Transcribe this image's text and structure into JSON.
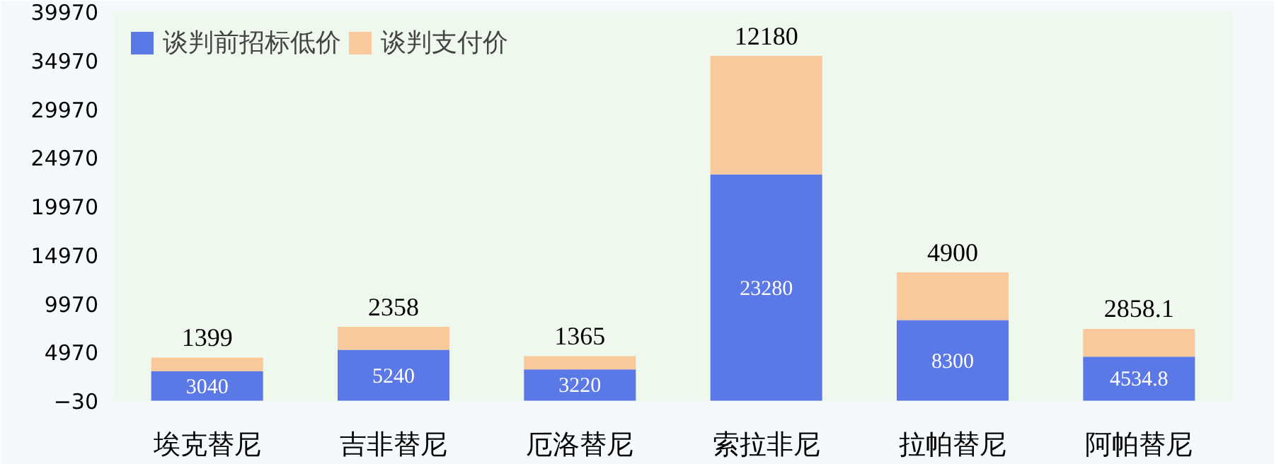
{
  "chart_data": {
    "type": "bar",
    "stacked": true,
    "categories": [
      "埃克替尼",
      "吉非替尼",
      "厄洛替尼",
      "索拉非尼",
      "拉帕替尼",
      "阿帕替尼"
    ],
    "series": [
      {
        "name": "谈判前招标低价",
        "color": "#5a78e6",
        "values": [
          3040,
          5240,
          3220,
          23280,
          8300,
          4534.8
        ]
      },
      {
        "name": "谈判支付价",
        "color": "#f9c99c",
        "values": [
          1399,
          2358,
          1365,
          12180,
          4900,
          2858.1
        ]
      }
    ],
    "ylim": [
      -30,
      39970
    ],
    "yticks": [
      -30,
      4970,
      9970,
      14970,
      19970,
      24970,
      29970,
      34970,
      39970
    ],
    "data_labels": true,
    "legend": "top left",
    "grid": false
  }
}
